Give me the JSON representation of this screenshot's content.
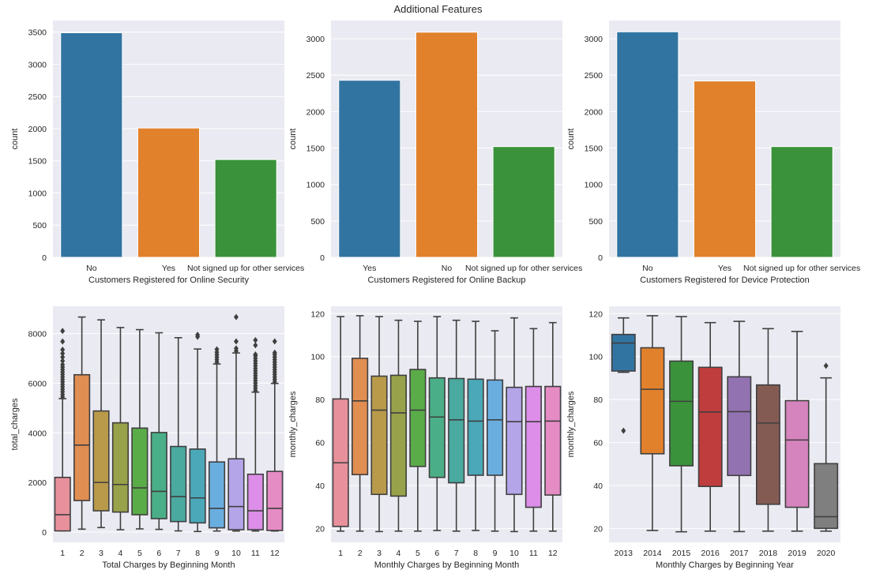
{
  "figure": {
    "suptitle": "Additional Features",
    "background": "#ffffff",
    "axes_facecolor": "#eaeaf2",
    "grid_color": "#ffffff",
    "line_color": "#3f3f3f"
  },
  "chart_data": [
    {
      "type": "bar",
      "title": "",
      "xlabel": "Customers Registered for Online Security",
      "ylabel": "count",
      "categories": [
        "No",
        "Yes",
        "Not signed up for other services"
      ],
      "values": [
        3490,
        2010,
        1520
      ],
      "colors": [
        "#3274a1",
        "#e1812c",
        "#3a923a"
      ],
      "ylim": [
        0,
        3680
      ],
      "yticks": [
        0,
        500,
        1000,
        1500,
        2000,
        2500,
        3000,
        3500
      ],
      "grid": true
    },
    {
      "type": "bar",
      "title": "",
      "xlabel": "Customers Registered for Online Backup",
      "ylabel": "count",
      "categories": [
        "Yes",
        "No",
        "Not signed up for other services"
      ],
      "values": [
        2430,
        3090,
        1520
      ],
      "colors": [
        "#3274a1",
        "#e1812c",
        "#3a923a"
      ],
      "ylim": [
        0,
        3250
      ],
      "yticks": [
        0,
        500,
        1000,
        1500,
        2000,
        2500,
        3000
      ],
      "grid": true
    },
    {
      "type": "bar",
      "title": "",
      "xlabel": "Customers Registered for Device Protection",
      "ylabel": "count",
      "categories": [
        "No",
        "Yes",
        "Not signed up for other services"
      ],
      "values": [
        3095,
        2420,
        1520
      ],
      "colors": [
        "#3274a1",
        "#e1812c",
        "#3a923a"
      ],
      "ylim": [
        0,
        3250
      ],
      "yticks": [
        0,
        500,
        1000,
        1500,
        2000,
        2500,
        3000
      ],
      "grid": true
    },
    {
      "type": "box",
      "title": "",
      "xlabel": "Total Charges by Beginning Month",
      "ylabel": "total_charges",
      "categories": [
        "1",
        "2",
        "3",
        "4",
        "5",
        "6",
        "7",
        "8",
        "9",
        "10",
        "11",
        "12"
      ],
      "ylim": [
        -414,
        9100
      ],
      "yticks": [
        0,
        2000,
        4000,
        6000,
        8000
      ],
      "grid": true,
      "colors": [
        "#e8909c",
        "#e08e52",
        "#b89a4a",
        "#98a24a",
        "#5aac48",
        "#4aae88",
        "#4aaaa0",
        "#4aa8b8",
        "#6aaee0",
        "#b4a4e8",
        "#dc8ee8",
        "#e68cc4"
      ],
      "boxes": [
        {
          "whislo": 45,
          "q1": 45,
          "med": 698,
          "q3": 2203,
          "whishi": 5377,
          "fliers": [
            5450,
            5550,
            5650,
            5750,
            5850,
            5950,
            6050,
            6150,
            6250,
            6350,
            6450,
            6550,
            6650,
            6750,
            6900,
            7050,
            7200,
            7350,
            7680,
            8107
          ]
        },
        {
          "whislo": 117,
          "q1": 1270,
          "med": 3505,
          "q3": 6340,
          "whishi": 8667,
          "fliers": []
        },
        {
          "whislo": 181,
          "q1": 857,
          "med": 2000,
          "q3": 4880,
          "whishi": 8552,
          "fliers": []
        },
        {
          "whislo": 95,
          "q1": 806,
          "med": 1917,
          "q3": 4403,
          "whishi": 8244,
          "fliers": []
        },
        {
          "whislo": 127,
          "q1": 698,
          "med": 1778,
          "q3": 4190,
          "whishi": 8159,
          "fliers": []
        },
        {
          "whislo": 108,
          "q1": 540,
          "med": 1641,
          "q3": 4012,
          "whishi": 8032,
          "fliers": []
        },
        {
          "whislo": 45,
          "q1": 423,
          "med": 1429,
          "q3": 3450,
          "whishi": 7834,
          "fliers": []
        },
        {
          "whislo": 22,
          "q1": 370,
          "med": 1376,
          "q3": 3344,
          "whishi": 7378,
          "fliers": [
            7870,
            7950
          ]
        },
        {
          "whislo": 40,
          "q1": 170,
          "med": 953,
          "q3": 2825,
          "whishi": 6775,
          "fliers": [
            6850,
            6950,
            7050,
            7150,
            7250,
            7365
          ]
        },
        {
          "whislo": 40,
          "q1": 95,
          "med": 1027,
          "q3": 2952,
          "whishi": 7219,
          "fliers": [
            7300,
            7400,
            7683,
            8667
          ]
        },
        {
          "whislo": 40,
          "q1": 95,
          "med": 857,
          "q3": 2330,
          "whishi": 5640,
          "fliers": [
            5700,
            5800,
            5900,
            6000,
            6100,
            6200,
            6300,
            6400,
            6500,
            6600,
            6700,
            6800,
            6900,
            7000,
            7100,
            7160,
            7530,
            7736
          ]
        },
        {
          "whislo": 40,
          "q1": 64,
          "med": 953,
          "q3": 2445,
          "whishi": 5989,
          "fliers": [
            6050,
            6150,
            6250,
            6350,
            6450,
            6550,
            6650,
            6750,
            6850,
            6950,
            7050,
            7150,
            7230,
            7683
          ]
        }
      ]
    },
    {
      "type": "box",
      "title": "",
      "xlabel": "Monthly Charges by Beginning Month",
      "ylabel": "monthly_charges",
      "categories": [
        "1",
        "2",
        "3",
        "4",
        "5",
        "6",
        "7",
        "8",
        "9",
        "10",
        "11",
        "12"
      ],
      "ylim": [
        13.6,
        123.4
      ],
      "yticks": [
        20,
        40,
        60,
        80,
        100,
        120
      ],
      "grid": true,
      "colors": [
        "#e8909c",
        "#e08e52",
        "#b89a4a",
        "#98a24a",
        "#5aac48",
        "#4aae88",
        "#4aaaa0",
        "#4aa8b8",
        "#6aaee0",
        "#b4a4e8",
        "#dc8ee8",
        "#e68cc4"
      ],
      "boxes": [
        {
          "whislo": 18.8,
          "q1": 21.0,
          "med": 50.6,
          "q3": 80.3,
          "whishi": 118.6,
          "fliers": []
        },
        {
          "whislo": 18.8,
          "q1": 45.1,
          "med": 79.4,
          "q3": 99.2,
          "whishi": 119.0,
          "fliers": []
        },
        {
          "whislo": 18.6,
          "q1": 35.9,
          "med": 75.1,
          "q3": 90.9,
          "whishi": 118.6,
          "fliers": []
        },
        {
          "whislo": 18.8,
          "q1": 35.1,
          "med": 73.8,
          "q3": 91.3,
          "whishi": 116.9,
          "fliers": []
        },
        {
          "whislo": 18.8,
          "q1": 48.9,
          "med": 75.1,
          "q3": 94.0,
          "whishi": 116.4,
          "fliers": []
        },
        {
          "whislo": 19.1,
          "q1": 43.8,
          "med": 71.9,
          "q3": 90.1,
          "whishi": 118.6,
          "fliers": []
        },
        {
          "whislo": 18.8,
          "q1": 41.3,
          "med": 70.6,
          "q3": 89.8,
          "whishi": 116.9,
          "fliers": []
        },
        {
          "whislo": 19.1,
          "q1": 44.8,
          "med": 70.0,
          "q3": 89.5,
          "whishi": 116.4,
          "fliers": []
        },
        {
          "whislo": 18.8,
          "q1": 44.8,
          "med": 70.6,
          "q3": 89.1,
          "whishi": 112.0,
          "fliers": []
        },
        {
          "whislo": 18.6,
          "q1": 35.9,
          "med": 69.7,
          "q3": 85.7,
          "whishi": 118.0,
          "fliers": []
        },
        {
          "whislo": 18.8,
          "q1": 29.9,
          "med": 69.7,
          "q3": 86.1,
          "whishi": 113.0,
          "fliers": []
        },
        {
          "whislo": 18.8,
          "q1": 35.6,
          "med": 70.0,
          "q3": 86.1,
          "whishi": 115.8,
          "fliers": []
        }
      ]
    },
    {
      "type": "box",
      "title": "",
      "xlabel": "Monthly Charges by Beginning Year",
      "ylabel": "monthly_charges",
      "categories": [
        "2013",
        "2014",
        "2015",
        "2016",
        "2017",
        "2018",
        "2019",
        "2020"
      ],
      "ylim": [
        13.6,
        123.4
      ],
      "yticks": [
        20,
        40,
        60,
        80,
        100,
        120
      ],
      "grid": true,
      "colors": [
        "#3274a1",
        "#e1812c",
        "#3a923a",
        "#c03d3e",
        "#9372b2",
        "#845b53",
        "#d684bd",
        "#7f7f7f"
      ],
      "boxes": [
        {
          "whislo": 92.7,
          "q1": 93.3,
          "med": 106.3,
          "q3": 110.3,
          "whishi": 118.0,
          "fliers": [
            65.5
          ]
        },
        {
          "whislo": 19.1,
          "q1": 54.8,
          "med": 84.8,
          "q3": 104.1,
          "whishi": 119.0,
          "fliers": []
        },
        {
          "whislo": 18.5,
          "q1": 49.2,
          "med": 79.2,
          "q3": 97.9,
          "whishi": 118.6,
          "fliers": []
        },
        {
          "whislo": 18.8,
          "q1": 39.6,
          "med": 74.2,
          "q3": 95.0,
          "whishi": 115.8,
          "fliers": []
        },
        {
          "whislo": 18.6,
          "q1": 44.7,
          "med": 74.4,
          "q3": 90.6,
          "whishi": 116.4,
          "fliers": []
        },
        {
          "whislo": 18.8,
          "q1": 31.3,
          "med": 69.1,
          "q3": 86.8,
          "whishi": 113.0,
          "fliers": []
        },
        {
          "whislo": 18.8,
          "q1": 29.9,
          "med": 61.2,
          "q3": 79.5,
          "whishi": 111.7,
          "fliers": []
        },
        {
          "whislo": 18.8,
          "q1": 20.1,
          "med": 25.5,
          "q3": 50.2,
          "whishi": 90.1,
          "fliers": [
            95.7
          ]
        }
      ]
    }
  ]
}
